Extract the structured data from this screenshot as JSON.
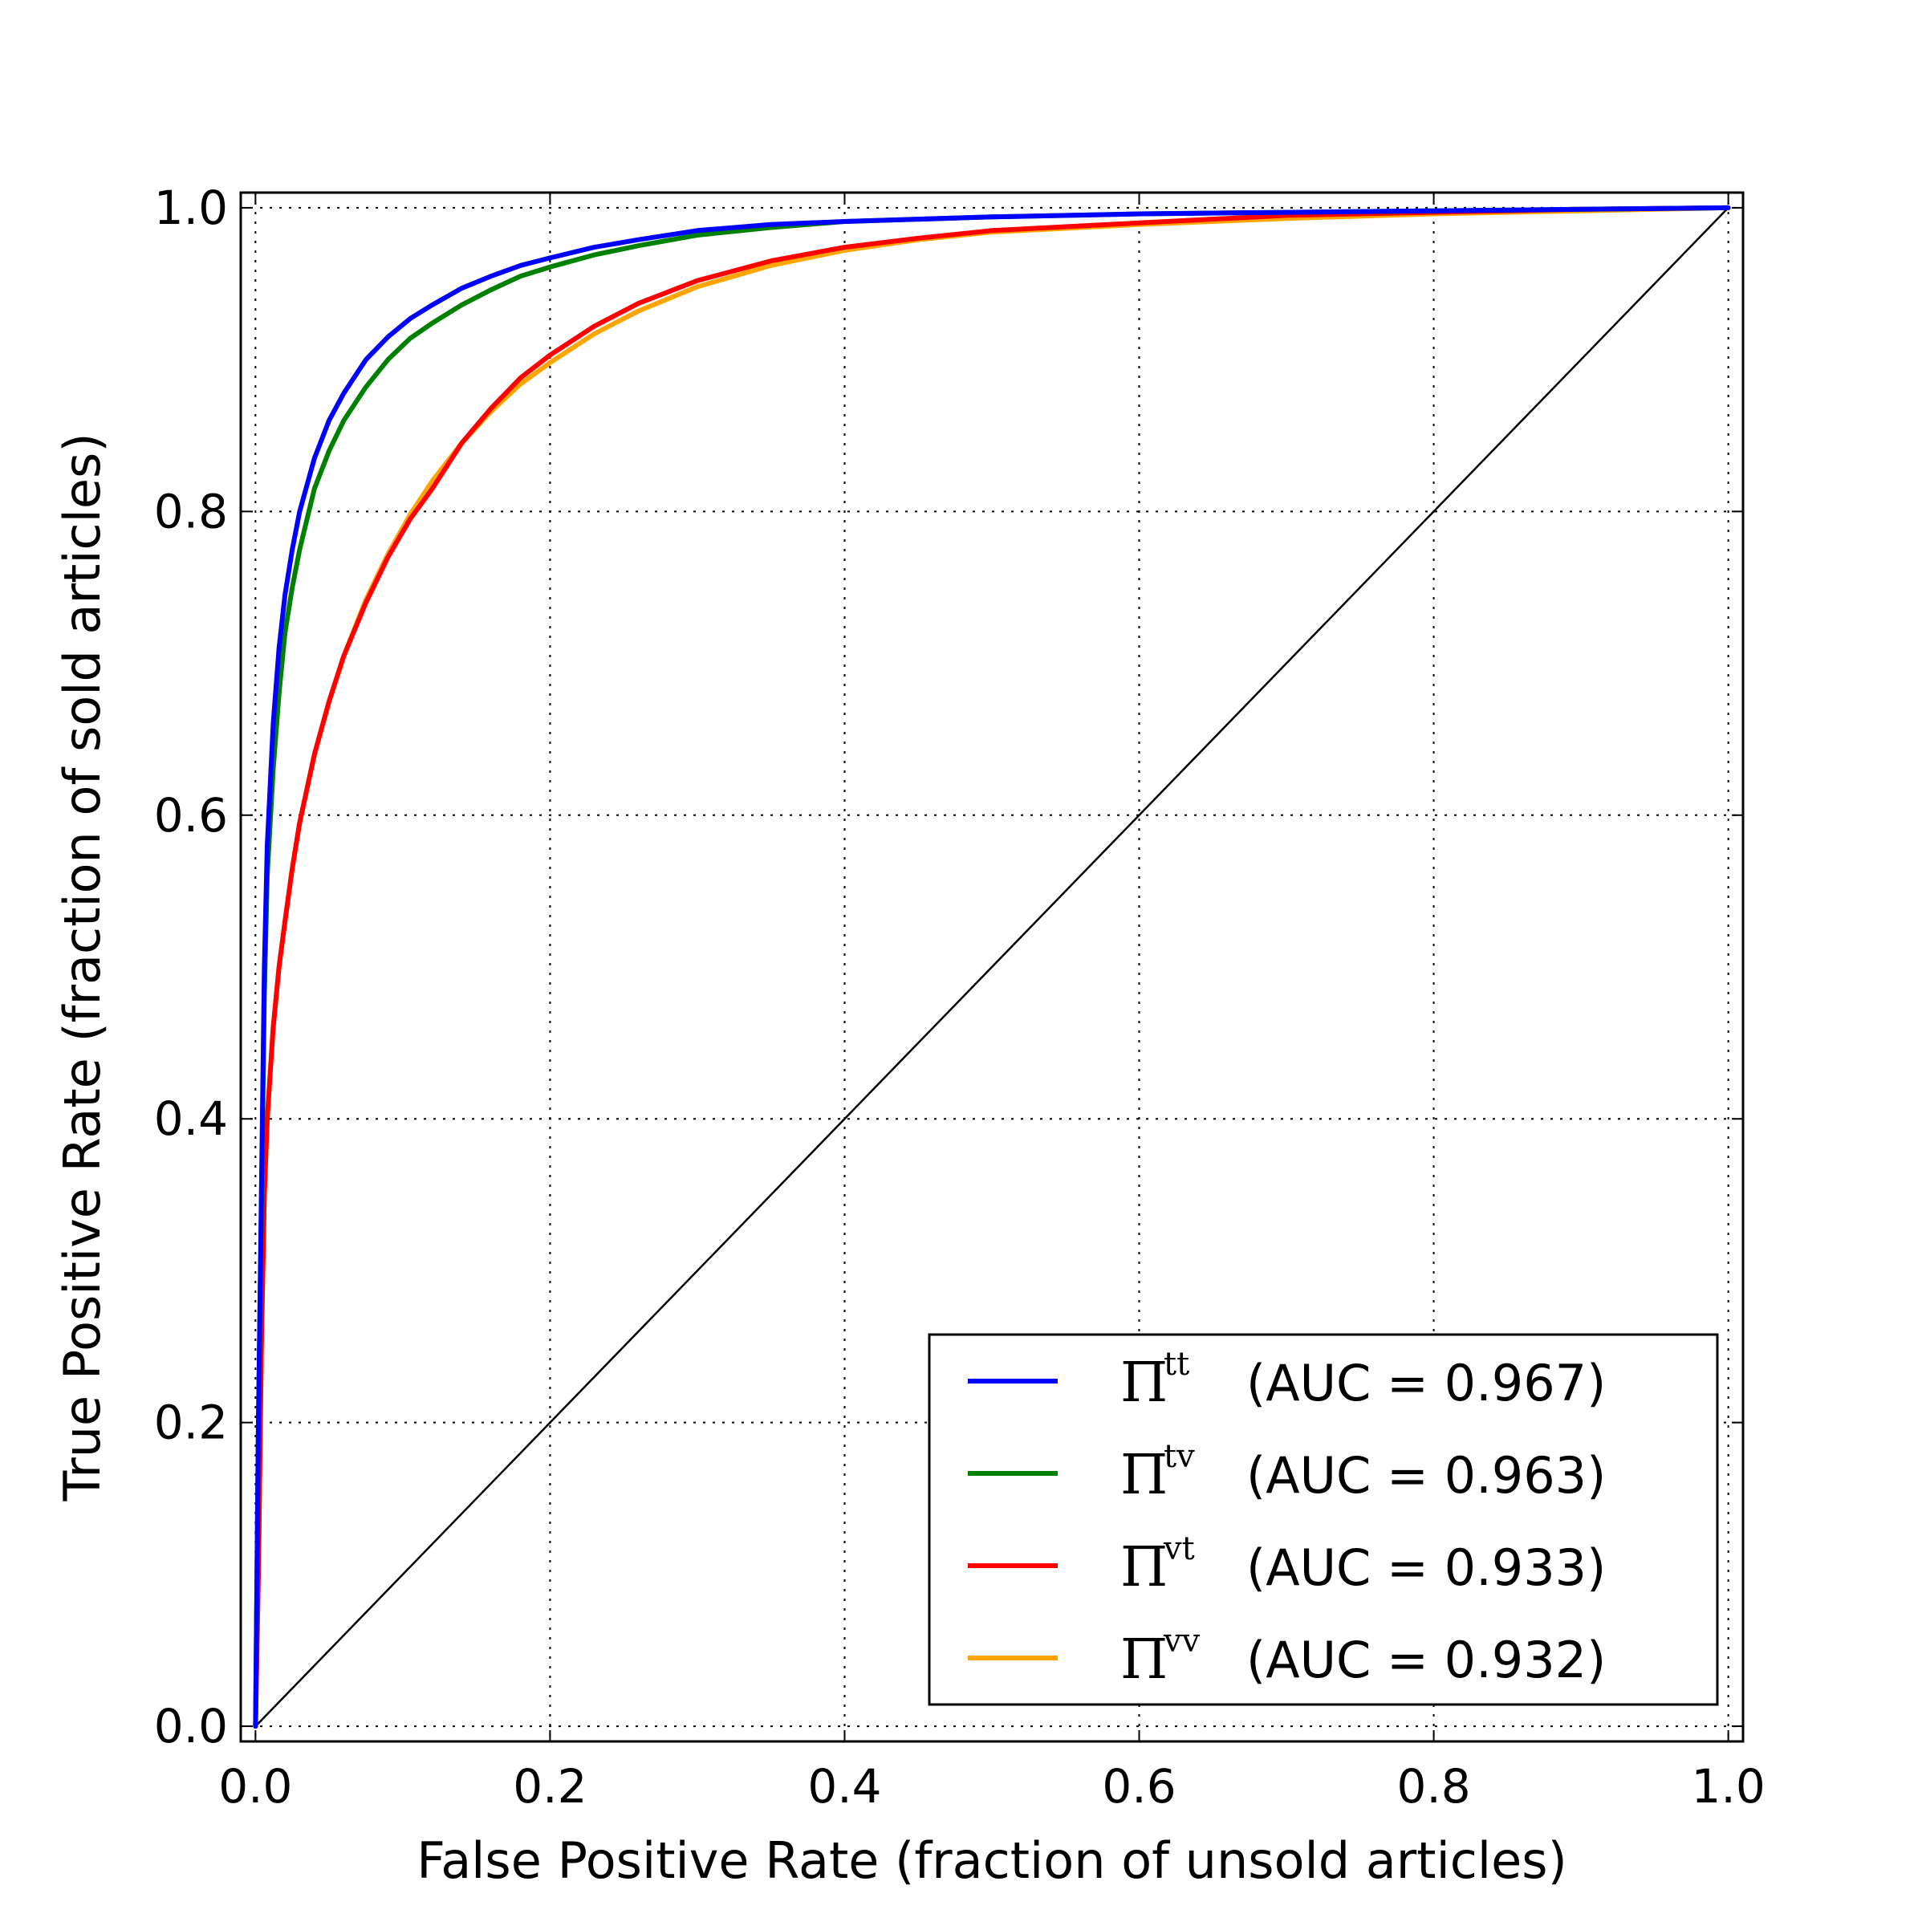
{
  "chart_data": {
    "type": "line",
    "xlabel": "False Positive Rate (fraction of unsold articles)",
    "ylabel": "True Positive Rate (fraction of sold articles)",
    "xlim": [
      -0.01,
      1.01
    ],
    "ylim": [
      -0.01,
      1.01
    ],
    "xticks": [
      0.0,
      0.2,
      0.4,
      0.6,
      0.8,
      1.0
    ],
    "yticks": [
      0.0,
      0.2,
      0.4,
      0.6,
      0.8,
      1.0
    ],
    "xtick_labels": [
      "0.0",
      "0.2",
      "0.4",
      "0.6",
      "0.8",
      "1.0"
    ],
    "ytick_labels": [
      "0.0",
      "0.2",
      "0.4",
      "0.6",
      "0.8",
      "1.0"
    ],
    "grid": true,
    "legend_position": "lower-right",
    "series": [
      {
        "name": "tt",
        "legend_symbol": "Π",
        "legend_superscript": "tt",
        "legend_text": "(AUC = 0.967)",
        "color": "#0000ff",
        "x": [
          0,
          0.002,
          0.004,
          0.006,
          0.008,
          0.012,
          0.016,
          0.02,
          0.025,
          0.03,
          0.04,
          0.05,
          0.06,
          0.075,
          0.09,
          0.105,
          0.12,
          0.14,
          0.16,
          0.18,
          0.2,
          0.23,
          0.26,
          0.3,
          0.35,
          0.4,
          0.5,
          0.6,
          0.7,
          0.8,
          0.9,
          1.0
        ],
        "y": [
          0,
          0.2,
          0.35,
          0.5,
          0.58,
          0.66,
          0.71,
          0.745,
          0.775,
          0.8,
          0.835,
          0.86,
          0.878,
          0.9,
          0.915,
          0.927,
          0.936,
          0.947,
          0.955,
          0.962,
          0.967,
          0.974,
          0.979,
          0.985,
          0.989,
          0.991,
          0.994,
          0.996,
          0.997,
          0.998,
          0.999,
          1.0
        ]
      },
      {
        "name": "tv",
        "legend_symbol": "Π",
        "legend_superscript": "tv",
        "legend_text": "(AUC = 0.963)",
        "color": "#008000",
        "x": [
          0,
          0.002,
          0.004,
          0.006,
          0.008,
          0.012,
          0.016,
          0.02,
          0.025,
          0.03,
          0.04,
          0.05,
          0.06,
          0.075,
          0.09,
          0.105,
          0.12,
          0.14,
          0.16,
          0.18,
          0.2,
          0.23,
          0.26,
          0.3,
          0.35,
          0.4,
          0.5,
          0.6,
          0.7,
          0.8,
          0.9,
          1.0
        ],
        "y": [
          0,
          0.2,
          0.34,
          0.48,
          0.56,
          0.63,
          0.68,
          0.72,
          0.75,
          0.775,
          0.815,
          0.84,
          0.86,
          0.882,
          0.9,
          0.914,
          0.924,
          0.936,
          0.946,
          0.955,
          0.961,
          0.969,
          0.975,
          0.982,
          0.987,
          0.991,
          0.994,
          0.996,
          0.997,
          0.998,
          0.999,
          1.0
        ]
      },
      {
        "name": "vt",
        "legend_symbol": "Π",
        "legend_superscript": "vt",
        "legend_text": "(AUC = 0.933)",
        "color": "#ff0000",
        "x": [
          0,
          0.002,
          0.004,
          0.006,
          0.008,
          0.012,
          0.016,
          0.02,
          0.025,
          0.03,
          0.04,
          0.05,
          0.06,
          0.075,
          0.09,
          0.105,
          0.12,
          0.14,
          0.16,
          0.18,
          0.2,
          0.23,
          0.26,
          0.3,
          0.35,
          0.4,
          0.45,
          0.5,
          0.6,
          0.7,
          0.8,
          0.9,
          1.0
        ],
        "y": [
          0,
          0.1,
          0.25,
          0.35,
          0.4,
          0.46,
          0.5,
          0.53,
          0.565,
          0.595,
          0.64,
          0.675,
          0.705,
          0.74,
          0.77,
          0.795,
          0.815,
          0.845,
          0.868,
          0.888,
          0.903,
          0.922,
          0.937,
          0.952,
          0.965,
          0.974,
          0.98,
          0.985,
          0.99,
          0.995,
          0.997,
          0.999,
          1.0
        ]
      },
      {
        "name": "vv",
        "legend_symbol": "Π",
        "legend_superscript": "vv",
        "legend_text": "(AUC = 0.932)",
        "color": "#ffa500",
        "x": [
          0,
          0.002,
          0.004,
          0.006,
          0.008,
          0.012,
          0.016,
          0.02,
          0.025,
          0.03,
          0.04,
          0.05,
          0.06,
          0.075,
          0.09,
          0.105,
          0.12,
          0.14,
          0.16,
          0.18,
          0.2,
          0.23,
          0.26,
          0.3,
          0.35,
          0.4,
          0.45,
          0.5,
          0.6,
          0.7,
          0.8,
          0.9,
          1.0
        ],
        "y": [
          0,
          0.1,
          0.25,
          0.35,
          0.4,
          0.46,
          0.5,
          0.53,
          0.565,
          0.595,
          0.64,
          0.675,
          0.705,
          0.742,
          0.772,
          0.798,
          0.82,
          0.845,
          0.866,
          0.884,
          0.898,
          0.917,
          0.932,
          0.948,
          0.962,
          0.972,
          0.979,
          0.984,
          0.989,
          0.993,
          0.996,
          0.998,
          1.0
        ]
      },
      {
        "name": "",
        "role": "diagonal",
        "color": "#000000",
        "x": [
          0,
          1
        ],
        "y": [
          0,
          1
        ]
      }
    ]
  }
}
